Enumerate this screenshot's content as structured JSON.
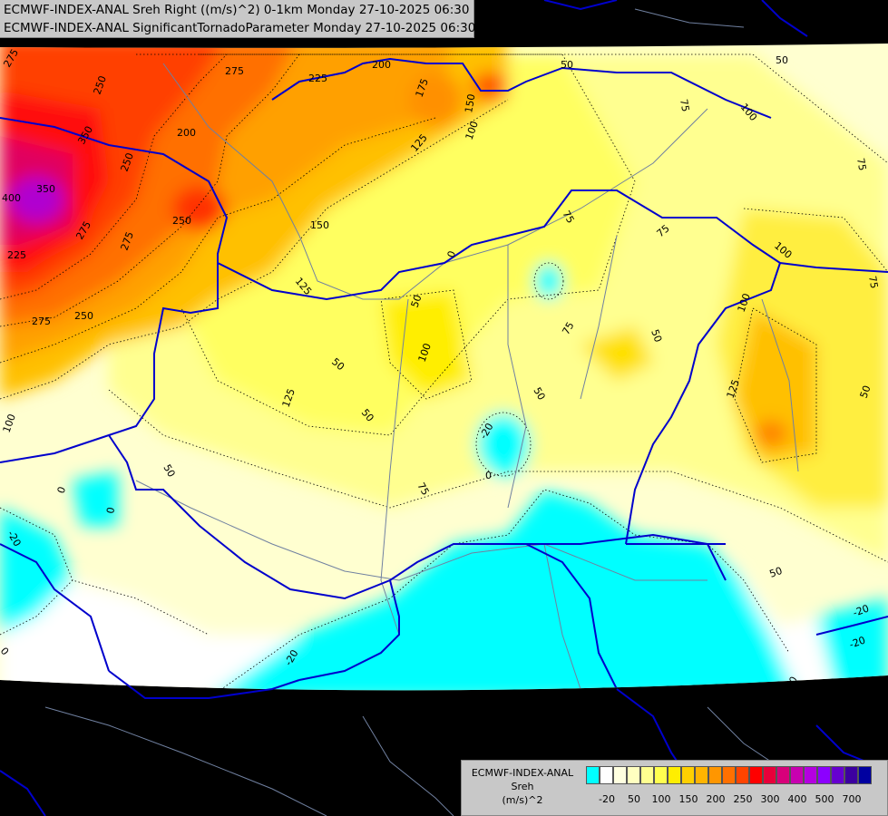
{
  "title": {
    "line1": "ECMWF-INDEX-ANAL Sreh Right ((m/s)^2) 0-1km Monday 27-10-2025 06:30",
    "line2": "ECMWF-INDEX-ANAL SignificantTornadoParameter Monday 27-10-2025 06:30"
  },
  "legend": {
    "model": "ECMWF-INDEX-ANAL",
    "variable": "Sreh",
    "unit": "(m/s)^2",
    "colors": [
      "#00ffff",
      "#ffffff",
      "#ffffe0",
      "#ffffc0",
      "#ffff90",
      "#ffff50",
      "#ffee00",
      "#ffd000",
      "#ffb400",
      "#ff9600",
      "#ff7000",
      "#ff4400",
      "#ff0000",
      "#e8003a",
      "#d8007a",
      "#c800b0",
      "#b400e0",
      "#8c00ff",
      "#6600d0",
      "#3c00a0",
      "#0000a0"
    ],
    "ticks": [
      "-20",
      "50",
      "100",
      "150",
      "200",
      "250",
      "300",
      "400",
      "500",
      "700"
    ]
  },
  "contour_labels": [
    "275",
    "250",
    "225",
    "200",
    "175",
    "150",
    "125",
    "100",
    "75",
    "50",
    "0",
    "-20",
    "400",
    "350"
  ],
  "colors": {
    "background": "#000000",
    "border_country": "#0000cc",
    "rivers": "#7080a0",
    "panel": "#c8c8c8"
  }
}
